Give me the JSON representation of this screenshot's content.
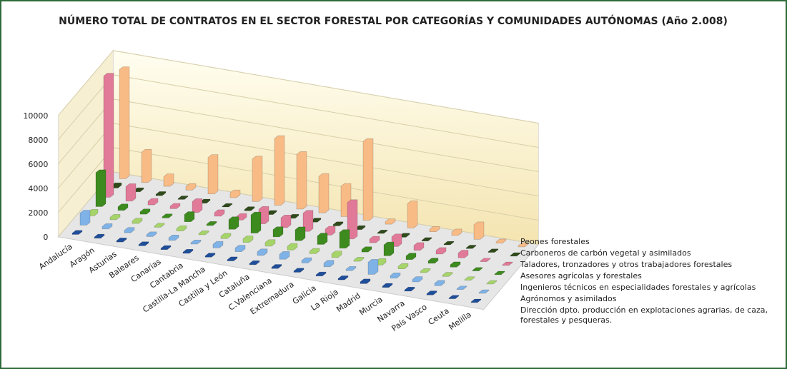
{
  "chart_data": {
    "type": "bar3d",
    "title": "NÚMERO TOTAL DE CONTRATOS EN EL SECTOR FORESTAL POR CATEGORÍAS Y COMUNIDADES AUTÓNOMAS (Año 2.008)",
    "categories": [
      "Andalucía",
      "Aragón",
      "Asturias",
      "Baleares",
      "Canarias",
      "Cantabria",
      "Castilla-La Mancha",
      "Castilla y León",
      "Cataluña",
      "C.Valenciana",
      "Extremadura",
      "Galicia",
      "La Rioja",
      "Madrid",
      "Murcia",
      "Navarra",
      "País Vasco",
      "Ceuta",
      "Melilla"
    ],
    "series": [
      {
        "name": "Dirección dpto. producción en explotaciones agrarias, de caza, forestales y pesqueras.",
        "color": "#1f4e9a",
        "values": [
          100,
          100,
          100,
          100,
          100,
          100,
          100,
          100,
          100,
          100,
          100,
          100,
          100,
          150,
          100,
          100,
          100,
          50,
          50
        ]
      },
      {
        "name": "Agrónomos y asimilados",
        "color": "#7fb2e6",
        "values": [
          1000,
          200,
          200,
          150,
          200,
          100,
          300,
          300,
          300,
          400,
          200,
          300,
          100,
          1000,
          200,
          200,
          200,
          50,
          50
        ]
      },
      {
        "name": "Ingenieros técnicos en especialidades forestales y agrícolas",
        "color": "#a6d46a",
        "values": [
          300,
          200,
          200,
          100,
          200,
          100,
          200,
          300,
          300,
          300,
          200,
          300,
          100,
          300,
          200,
          100,
          100,
          50,
          50
        ]
      },
      {
        "name": "Asesores agrícolas y forestales",
        "color": "#3d8a1f",
        "values": [
          2800,
          300,
          200,
          100,
          600,
          100,
          800,
          1500,
          600,
          900,
          700,
          1300,
          200,
          900,
          300,
          200,
          200,
          50,
          50
        ]
      },
      {
        "name": "Taladores, tronzadores y otros trabajadores forestales",
        "color": "#e07a98",
        "values": [
          10000,
          1200,
          300,
          200,
          900,
          300,
          300,
          1200,
          800,
          1500,
          500,
          3000,
          300,
          800,
          400,
          300,
          400,
          50,
          50
        ]
      },
      {
        "name": "Carboneros de carbón vegetal y asimilados",
        "color": "#2f4a1a",
        "values": [
          200,
          100,
          100,
          50,
          100,
          50,
          100,
          100,
          100,
          100,
          100,
          100,
          50,
          100,
          50,
          50,
          50,
          50,
          50
        ]
      },
      {
        "name": "Peones forestales",
        "color": "#f8bb86",
        "values": [
          9000,
          2500,
          800,
          300,
          3000,
          400,
          3500,
          5500,
          4500,
          3000,
          2500,
          6500,
          200,
          2000,
          200,
          300,
          1200,
          100,
          100
        ]
      }
    ],
    "ylim": [
      0,
      10000
    ],
    "yticks": [
      0,
      2000,
      4000,
      6000,
      8000,
      10000
    ],
    "grid": true
  }
}
